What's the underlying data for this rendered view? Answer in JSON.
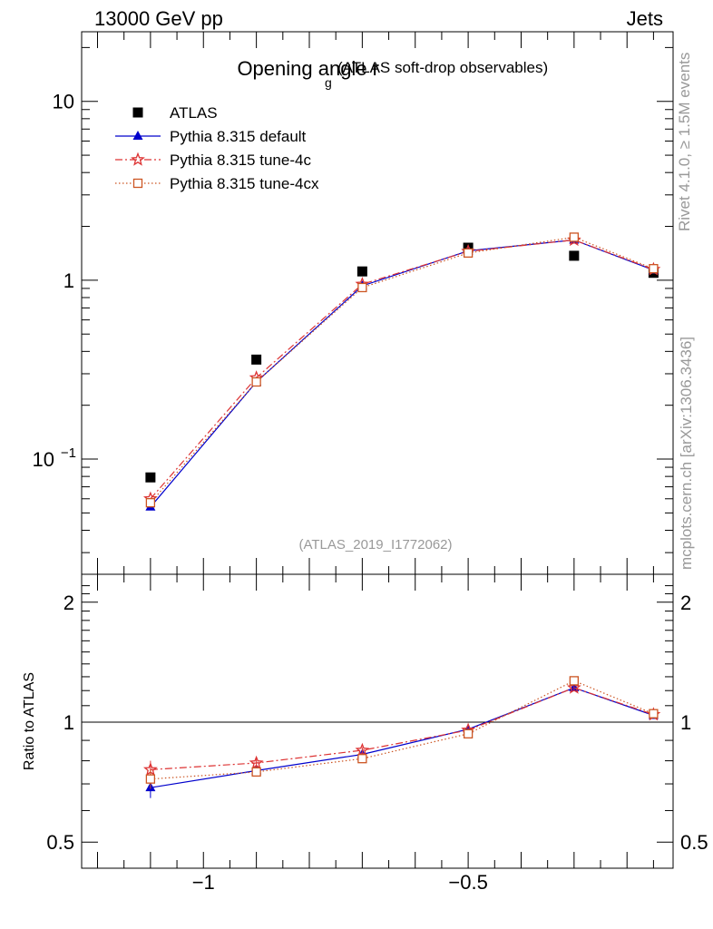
{
  "header": {
    "energy_label": "13000 GeV pp",
    "category_label": "Jets"
  },
  "side_labels": {
    "rivet": "Rivet 4.1.0, ≥ 1.5M events",
    "mcplots": "mcplots.cern.ch [arXiv:1306.3436]"
  },
  "chart_data": [
    {
      "type": "scatter",
      "title": {
        "main": "Opening angle r",
        "subscript": "g",
        "suffix": "(ATLAS soft-drop observables)"
      },
      "analysis_id": "(ATLAS_2019_I1772062)",
      "xscale": "linear",
      "yscale": "log",
      "xlim": [
        -1.23,
        -0.113
      ],
      "ylim": [
        0.0227,
        24.5
      ],
      "x": [
        -1.1,
        -0.9,
        -0.7,
        -0.5,
        -0.3,
        -0.15
      ],
      "xticks": [
        {
          "value": -1,
          "label": "−1"
        },
        {
          "value": -0.5,
          "label": "−0.5"
        }
      ],
      "yticks": [
        {
          "value": 10,
          "label": "10"
        },
        {
          "value": 1,
          "label": "1"
        },
        {
          "value": 0.1,
          "base": "10",
          "exp": "−1"
        }
      ],
      "legend_position": "top-left",
      "series": [
        {
          "name": "ATLAS",
          "color": "#000000",
          "marker": "square-filled",
          "line": "none",
          "values": [
            0.079,
            0.36,
            1.12,
            1.52,
            1.37,
            1.1
          ]
        },
        {
          "name": "Pythia 8.315 default",
          "color": "#0000cc",
          "marker": "triangle-filled",
          "line": "solid",
          "values": [
            0.054,
            0.27,
            0.93,
            1.46,
            1.68,
            1.14
          ]
        },
        {
          "name": "Pythia 8.315 tune-4c",
          "color": "#dd3333",
          "marker": "star-open",
          "line": "dashdot",
          "values": [
            0.06,
            0.285,
            0.95,
            1.45,
            1.68,
            1.15
          ]
        },
        {
          "name": "Pythia 8.315 tune-4cx",
          "color": "#cc5522",
          "marker": "square-open",
          "line": "dotted",
          "values": [
            0.057,
            0.27,
            0.91,
            1.42,
            1.74,
            1.16
          ]
        }
      ]
    },
    {
      "type": "line",
      "ylabel": "Ratio to ATLAS",
      "yscale": "log",
      "xlim": [
        -1.23,
        -0.113
      ],
      "ylim": [
        0.43,
        2.35
      ],
      "reference_line": 1,
      "x": [
        -1.1,
        -0.9,
        -0.7,
        -0.5,
        -0.3,
        -0.15
      ],
      "yticks": [
        {
          "value": 2,
          "label": "2"
        },
        {
          "value": 1,
          "label": "1"
        },
        {
          "value": 0.5,
          "label": "0.5"
        }
      ],
      "series": [
        {
          "name": "Pythia 8.315 default",
          "color": "#0000cc",
          "marker": "triangle-filled",
          "line": "solid",
          "values": [
            0.685,
            0.756,
            0.83,
            0.96,
            1.22,
            1.04
          ],
          "errors": [
            0.04,
            0.02,
            0.015,
            0.012,
            0.012,
            0.012
          ]
        },
        {
          "name": "Pythia 8.315 tune-4c",
          "color": "#dd3333",
          "marker": "star-open",
          "line": "dashdot",
          "values": [
            0.76,
            0.79,
            0.85,
            0.955,
            1.22,
            1.045
          ],
          "errors": [
            0.04,
            0.02,
            0.015,
            0.012,
            0.012,
            0.012
          ]
        },
        {
          "name": "Pythia 8.315 tune-4cx",
          "color": "#cc5522",
          "marker": "square-open",
          "line": "dotted",
          "values": [
            0.72,
            0.75,
            0.81,
            0.935,
            1.27,
            1.05
          ],
          "errors": [
            0.04,
            0.02,
            0.015,
            0.012,
            0.012,
            0.012
          ]
        }
      ]
    }
  ]
}
